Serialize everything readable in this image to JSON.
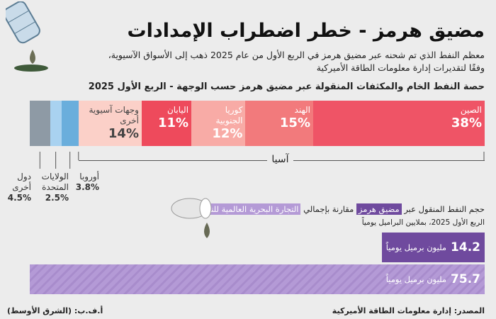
{
  "header": {
    "title": "مضيق هرمز - خطر اضطراب الإمدادات",
    "subtitle_line1": "معظم النفط الذي تم شحنه عبر مضيق هرمز في الربع الأول من عام 2025 ذهب إلى الأسواق الآسيوية،",
    "subtitle_line2": "وفقًا لتقديرات إدارة معلومات الطاقة الأميركية"
  },
  "chart_data": [
    {
      "type": "bar",
      "stacked": true,
      "orientation": "horizontal",
      "title": "حصة النفط الخام والمكثفات المنقولة عبر مضيق هرمز حسب الوجهة - الربع الأول 2025",
      "categories": [
        "الصين",
        "الهند",
        "كوريا الجنوبية",
        "اليابان",
        "وجهات آسيوية أخرى",
        "أوروبا",
        "الولايات المتحدة",
        "دول أخرى"
      ],
      "labels": [
        {
          "line1": "الصين",
          "line2": "",
          "pct": "38%"
        },
        {
          "line1": "الهند",
          "line2": "",
          "pct": "15%"
        },
        {
          "line1": "كوريا",
          "line2": "الجنوبية",
          "pct": "12%"
        },
        {
          "line1": "اليابان",
          "line2": "",
          "pct": "11%"
        },
        {
          "line1": "وجهات آسيوية",
          "line2": "أخرى",
          "pct": "14%"
        },
        {
          "line1": "أوروبا",
          "line2": "",
          "pct": "3.8%"
        },
        {
          "line1": "الولايات",
          "line2": "المتحدة",
          "pct": "2.5%"
        },
        {
          "line1": "دول",
          "line2": "أخرى",
          "pct": "4.5%"
        }
      ],
      "values": [
        38,
        15,
        12,
        11,
        14,
        3.8,
        2.5,
        4.5
      ],
      "colors": [
        "#ef5466",
        "#f27a7c",
        "#f8aba6",
        "#ee4a5c",
        "#fbd0c8",
        "#6aaedc",
        "#a9d2f0",
        "#8e9aa5"
      ],
      "group_label": "آسيا",
      "unit": "%"
    },
    {
      "type": "bar",
      "orientation": "horizontal",
      "title_part1": "حجم النفط المنقول عبر",
      "title_highlight1": "مضيق هرمز",
      "title_part2": "مقارنة بإجمالي",
      "title_highlight2": "التجارة البحرية العالمية للنفط",
      "subtitle": "الربع الأول 2025، بملايين البراميل يومياً",
      "categories": [
        "مضيق هرمز",
        "التجارة البحرية العالمية للنفط"
      ],
      "values": [
        14.2,
        75.7
      ],
      "value_labels": [
        "14.2",
        "75.7"
      ],
      "unit": "مليون برميل يومياً",
      "colors": [
        "#6f4a9e",
        "#b49ad6"
      ]
    }
  ],
  "footer": {
    "source": "المصدر: إدارة معلومات الطاقة الأميركية",
    "credit": "أ.ف.ب: (الشرق الأوسط)"
  }
}
